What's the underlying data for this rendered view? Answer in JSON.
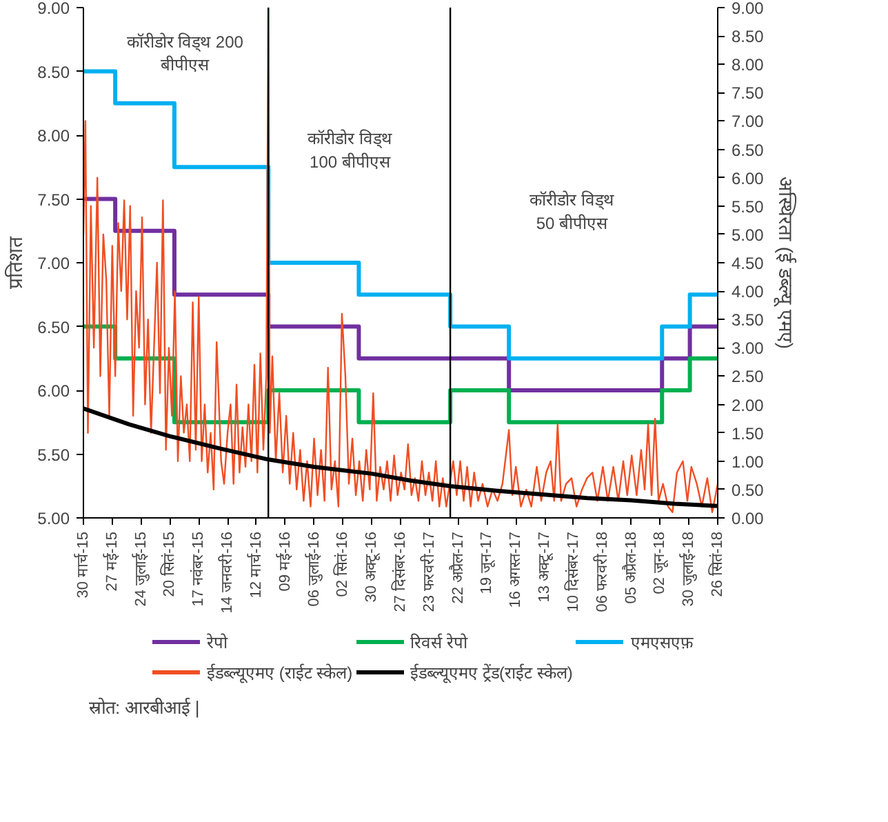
{
  "chart_data": {
    "type": "step",
    "xlabel": null,
    "ylabel": "प्रतिशत",
    "y2label": "अस्थिरता (ई डब्ल्यू एमए)",
    "xlim": [
      "2015-03-30",
      "2018-09-26"
    ],
    "xticks": [
      {
        "value": "2015-03-30",
        "label": "30 मार्च-15"
      },
      {
        "value": "2015-05-27",
        "label": "27 मई-15"
      },
      {
        "value": "2015-07-24",
        "label": "24 जुलाई-15"
      },
      {
        "value": "2015-09-20",
        "label": "20 सितं-15"
      },
      {
        "value": "2015-11-17",
        "label": "17 नवंबर-15"
      },
      {
        "value": "2016-01-14",
        "label": "14 जनवरी-16"
      },
      {
        "value": "2016-03-12",
        "label": "12 मार्च-16"
      },
      {
        "value": "2016-05-09",
        "label": "09 मई-16"
      },
      {
        "value": "2016-07-06",
        "label": "06 जुलाई-16"
      },
      {
        "value": "2016-09-02",
        "label": "02 सितं-16"
      },
      {
        "value": "2016-10-30",
        "label": "30 अक्टू-16"
      },
      {
        "value": "2016-12-27",
        "label": "27 दिसंबर-16"
      },
      {
        "value": "2017-02-23",
        "label": "23 फरवरी-17"
      },
      {
        "value": "2017-04-22",
        "label": "22 अप्रैल-17"
      },
      {
        "value": "2017-06-19",
        "label": "19 जून-17"
      },
      {
        "value": "2017-08-16",
        "label": "16 अगस्त-17"
      },
      {
        "value": "2017-10-13",
        "label": "13 अक्टू-17"
      },
      {
        "value": "2017-12-10",
        "label": "10 दिसंबर-17"
      },
      {
        "value": "2018-02-06",
        "label": "06 फरवरी-18"
      },
      {
        "value": "2018-04-05",
        "label": "05 अप्रैल-18"
      },
      {
        "value": "2018-06-02",
        "label": "02 जून-18"
      },
      {
        "value": "2018-07-30",
        "label": "30 जुलाई-18"
      },
      {
        "value": "2018-09-26",
        "label": "26 सितं-18"
      }
    ],
    "ylim": [
      5,
      9
    ],
    "yticks": [
      {
        "value": 5,
        "label": "5.00"
      },
      {
        "value": 5.5,
        "label": "5.50"
      },
      {
        "value": 6,
        "label": "6.00"
      },
      {
        "value": 6.5,
        "label": "6.50"
      },
      {
        "value": 7,
        "label": "7.00"
      },
      {
        "value": 7.5,
        "label": "7.50"
      },
      {
        "value": 8,
        "label": "8.00"
      },
      {
        "value": 8.5,
        "label": "8.50"
      },
      {
        "value": 9,
        "label": "9.00"
      }
    ],
    "y2lim": [
      0,
      9
    ],
    "y2ticks": [
      {
        "value": 0,
        "label": "0.00"
      },
      {
        "value": 0.5,
        "label": "0.50"
      },
      {
        "value": 1,
        "label": "1.00"
      },
      {
        "value": 1.5,
        "label": "1.50"
      },
      {
        "value": 2,
        "label": "2.00"
      },
      {
        "value": 2.5,
        "label": "2.50"
      },
      {
        "value": 3,
        "label": "3.00"
      },
      {
        "value": 3.5,
        "label": "3.50"
      },
      {
        "value": 4,
        "label": "4.00"
      },
      {
        "value": 4.5,
        "label": "4.50"
      },
      {
        "value": 5,
        "label": "5.00"
      },
      {
        "value": 5.5,
        "label": "5.50"
      },
      {
        "value": 6,
        "label": "6.00"
      },
      {
        "value": 6.5,
        "label": "6.50"
      },
      {
        "value": 7,
        "label": "7.00"
      },
      {
        "value": 7.5,
        "label": "7.50"
      },
      {
        "value": 8,
        "label": "8.00"
      },
      {
        "value": 8.5,
        "label": "8.50"
      },
      {
        "value": 9,
        "label": "9.00"
      }
    ],
    "grid": false,
    "legend": "bottom",
    "marker": "none",
    "line_style": "solid",
    "series": [
      {
        "name": "रेपो",
        "color": "#7030a0",
        "x": [
          "2015-03-30",
          "2015-06-02",
          "2015-09-29",
          "2016-04-05",
          "2016-10-04",
          "2017-08-02",
          "2018-06-06",
          "2018-08-01",
          "2018-09-26"
        ],
        "values": [
          7.5,
          7.25,
          6.75,
          6.5,
          6.25,
          6.0,
          6.25,
          6.5,
          6.5
        ]
      },
      {
        "name": "रिवर्स रेपो",
        "color": "#00b050",
        "x": [
          "2015-03-30",
          "2015-06-02",
          "2015-09-29",
          "2016-04-05",
          "2016-10-04",
          "2017-04-06",
          "2017-08-02",
          "2018-06-06",
          "2018-08-01",
          "2018-09-26"
        ],
        "values": [
          6.5,
          6.25,
          5.75,
          6.0,
          5.75,
          6.0,
          5.75,
          6.0,
          6.25,
          6.25
        ]
      },
      {
        "name": "एमएसएफ़",
        "color": "#00b0f0",
        "x": [
          "2015-03-30",
          "2015-06-02",
          "2015-09-29",
          "2016-04-05",
          "2016-10-04",
          "2017-04-06",
          "2017-08-02",
          "2018-06-06",
          "2018-08-01",
          "2018-09-26"
        ],
        "values": [
          8.5,
          8.25,
          7.75,
          7.0,
          6.75,
          6.5,
          6.25,
          6.5,
          6.75,
          6.75
        ]
      },
      {
        "name": "ईडब्ल्यूएमए (राईट स्केल)",
        "color": "#f04e23",
        "type": "line",
        "axis": "y2",
        "x": [
          "2015-03-30",
          "2015-04-03",
          "2015-04-08",
          "2015-04-14",
          "2015-04-20",
          "2015-04-27",
          "2015-05-03",
          "2015-05-09",
          "2015-05-15",
          "2015-05-21",
          "2015-05-27",
          "2015-06-02",
          "2015-06-08",
          "2015-06-14",
          "2015-06-20",
          "2015-06-26",
          "2015-07-02",
          "2015-07-08",
          "2015-07-14",
          "2015-07-20",
          "2015-07-26",
          "2015-08-01",
          "2015-08-07",
          "2015-08-13",
          "2015-08-19",
          "2015-08-25",
          "2015-08-31",
          "2015-09-06",
          "2015-09-12",
          "2015-09-18",
          "2015-09-24",
          "2015-09-30",
          "2015-10-06",
          "2015-10-12",
          "2015-10-18",
          "2015-10-24",
          "2015-10-30",
          "2015-11-05",
          "2015-11-11",
          "2015-11-17",
          "2015-11-23",
          "2015-11-29",
          "2015-12-05",
          "2015-12-11",
          "2015-12-17",
          "2015-12-23",
          "2016-01-01",
          "2016-01-07",
          "2016-01-14",
          "2016-01-20",
          "2016-01-26",
          "2016-02-01",
          "2016-02-07",
          "2016-02-13",
          "2016-02-19",
          "2016-02-25",
          "2016-03-02",
          "2016-03-08",
          "2016-03-14",
          "2016-03-20",
          "2016-03-26",
          "2016-04-01",
          "2016-04-05",
          "2016-04-08",
          "2016-04-13",
          "2016-04-20",
          "2016-04-27",
          "2016-05-04",
          "2016-05-11",
          "2016-05-18",
          "2016-05-25",
          "2016-06-01",
          "2016-06-08",
          "2016-06-15",
          "2016-06-22",
          "2016-06-29",
          "2016-07-06",
          "2016-07-13",
          "2016-07-20",
          "2016-07-27",
          "2016-08-03",
          "2016-08-10",
          "2016-08-17",
          "2016-08-24",
          "2016-08-31",
          "2016-09-07",
          "2016-09-14",
          "2016-09-21",
          "2016-09-28",
          "2016-10-05",
          "2016-10-12",
          "2016-10-19",
          "2016-10-26",
          "2016-11-02",
          "2016-11-09",
          "2016-11-16",
          "2016-11-23",
          "2016-11-30",
          "2016-12-07",
          "2016-12-14",
          "2016-12-21",
          "2016-12-28",
          "2017-01-04",
          "2017-01-11",
          "2017-01-18",
          "2017-01-25",
          "2017-02-01",
          "2017-02-08",
          "2017-02-15",
          "2017-02-22",
          "2017-03-01",
          "2017-03-08",
          "2017-03-15",
          "2017-03-22",
          "2017-03-29",
          "2017-04-05",
          "2017-04-12",
          "2017-04-19",
          "2017-04-26",
          "2017-05-03",
          "2017-05-10",
          "2017-05-17",
          "2017-05-24",
          "2017-06-01",
          "2017-06-10",
          "2017-06-20",
          "2017-06-30",
          "2017-07-10",
          "2017-07-20",
          "2017-08-02",
          "2017-08-09",
          "2017-08-16",
          "2017-08-26",
          "2017-09-06",
          "2017-09-16",
          "2017-09-27",
          "2017-10-06",
          "2017-10-16",
          "2017-10-25",
          "2017-11-01",
          "2017-11-08",
          "2017-11-15",
          "2017-11-25",
          "2017-12-06",
          "2017-12-16",
          "2017-12-27",
          "2018-01-06",
          "2018-01-17",
          "2018-01-27",
          "2018-02-07",
          "2018-02-17",
          "2018-02-28",
          "2018-03-10",
          "2018-03-20",
          "2018-03-28",
          "2018-04-06",
          "2018-04-16",
          "2018-04-25",
          "2018-05-02",
          "2018-05-09",
          "2018-05-16",
          "2018-05-23",
          "2018-05-30",
          "2018-06-08",
          "2018-06-18",
          "2018-06-27",
          "2018-07-06",
          "2018-07-18",
          "2018-07-27",
          "2018-08-04",
          "2018-08-15",
          "2018-08-25",
          "2018-09-05",
          "2018-09-15",
          "2018-09-26"
        ],
        "values": [
          5.0,
          7.0,
          1.5,
          5.5,
          3.0,
          6.0,
          2.5,
          5.0,
          4.2,
          1.8,
          4.8,
          2.5,
          5.2,
          4.0,
          5.6,
          3.5,
          5.5,
          1.8,
          4.0,
          3.0,
          5.3,
          2.0,
          3.5,
          1.5,
          3.0,
          4.5,
          2.2,
          5.6,
          1.2,
          3.0,
          1.8,
          4.0,
          1.0,
          2.5,
          1.5,
          2.0,
          1.0,
          3.8,
          1.2,
          3.9,
          1.0,
          2.0,
          0.8,
          1.5,
          0.5,
          3.1,
          1.0,
          0.6,
          1.5,
          2.0,
          0.6,
          2.35,
          0.8,
          1.6,
          0.9,
          2.0,
          1.0,
          2.7,
          0.8,
          2.9,
          1.2,
          2.5,
          9.0,
          1.5,
          2.85,
          1.0,
          2.2,
          0.8,
          1.8,
          0.6,
          1.5,
          0.5,
          1.2,
          0.3,
          1.0,
          0.2,
          1.4,
          0.4,
          1.2,
          0.3,
          2.65,
          0.5,
          1.0,
          0.2,
          3.6,
          2.5,
          0.6,
          1.4,
          0.4,
          1.0,
          0.3,
          1.2,
          0.5,
          2.2,
          0.3,
          0.9,
          0.5,
          1.0,
          0.3,
          1.1,
          0.4,
          0.8,
          0.5,
          1.3,
          0.4,
          0.7,
          0.3,
          1.0,
          0.4,
          0.8,
          0.3,
          1.0,
          0.2,
          0.7,
          0.2,
          0.6,
          1.0,
          0.4,
          1.0,
          0.3,
          0.9,
          0.2,
          0.8,
          0.3,
          0.6,
          0.2,
          0.5,
          0.3,
          0.6,
          1.55,
          0.4,
          0.9,
          0.2,
          0.5,
          0.2,
          0.9,
          0.3,
          0.8,
          1.0,
          0.3,
          1.65,
          0.3,
          0.6,
          0.7,
          0.2,
          0.5,
          0.7,
          0.8,
          0.3,
          0.9,
          0.3,
          0.9,
          0.3,
          1.0,
          0.4,
          1.1,
          0.4,
          1.2,
          0.5,
          1.65,
          0.4,
          1.75,
          0.3,
          0.6,
          0.2,
          0.1,
          0.8,
          1.0,
          0.3,
          0.9,
          0.6,
          0.2,
          0.7,
          0.1,
          0.6
        ]
      },
      {
        "name": "ईडब्ल्यूएमए ट्रेंड(राईट स्केल)",
        "color": "#000000",
        "type": "line",
        "axis": "y2",
        "x": [
          "2015-03-30",
          "2015-06-30",
          "2015-09-20",
          "2015-12-31",
          "2016-04-05",
          "2016-07-06",
          "2016-10-30",
          "2017-01-15",
          "2017-04-06",
          "2017-07-06",
          "2017-10-13",
          "2018-01-06",
          "2018-04-05",
          "2018-07-01",
          "2018-09-26"
        ],
        "values": [
          1.93,
          1.65,
          1.44,
          1.22,
          1.03,
          0.9,
          0.78,
          0.66,
          0.56,
          0.48,
          0.41,
          0.35,
          0.31,
          0.25,
          0.21
        ]
      }
    ],
    "ref_lines": [
      {
        "axis": "x",
        "value": "2016-04-05",
        "label": null,
        "color": "#000000"
      },
      {
        "axis": "x",
        "value": "2017-04-06",
        "label": null,
        "color": "#000000"
      }
    ],
    "annotations": [
      "कॉरीडोर विड्थ 200\nबीपीएस",
      "कॉरीडोर विड्थ\n100 बीपीएस",
      "कॉरीडोर विड्थ\n50 बीपीएस",
      "स्रोत: आरबीआई |"
    ]
  }
}
